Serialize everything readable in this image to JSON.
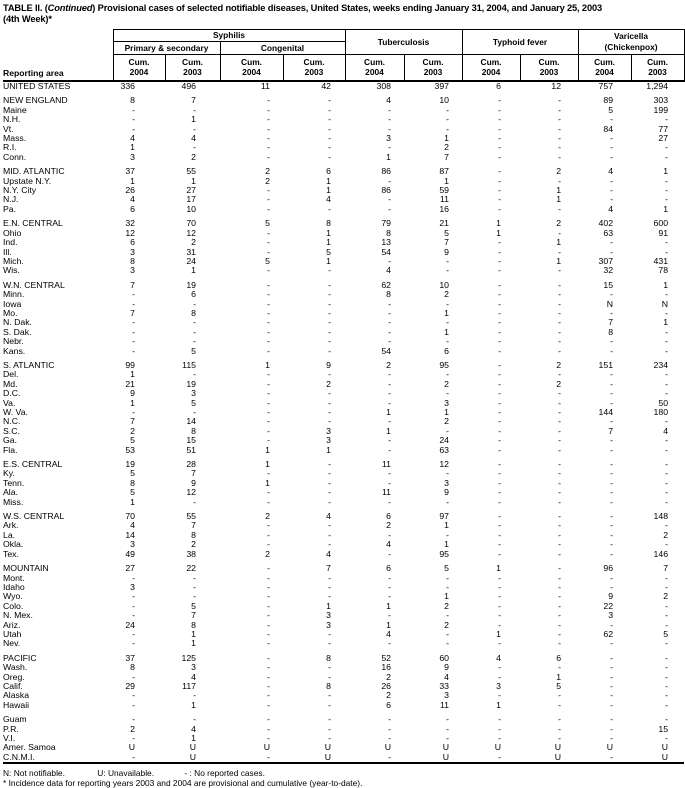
{
  "title": {
    "part1": "TABLE II. (",
    "continued": "Continued",
    "part2": ") Provisional cases of selected notifiable diseases, United States, weeks ending January 31, 2004, and January 25, 2003",
    "line2": "(4th Week)*"
  },
  "table": {
    "reporting_area_label": "Reporting area",
    "groups": {
      "syphilis": "Syphilis",
      "primary_secondary": "Primary & secondary",
      "congenital": "Congenital",
      "tuberculosis": "Tuberculosis",
      "typhoid": "Typhoid fever",
      "varicella_line1": "Varicella",
      "varicella_line2": "(Chickenpox)"
    },
    "hdr": {
      "cum": "Cum.",
      "y2004": "2004",
      "y2003": "2003"
    },
    "sections": [
      {
        "rows": [
          [
            "UNITED STATES",
            "336",
            "496",
            "11",
            "42",
            "308",
            "397",
            "6",
            "12",
            "757",
            "1,294"
          ]
        ]
      },
      {
        "rows": [
          [
            "NEW ENGLAND",
            "8",
            "7",
            "-",
            "-",
            "4",
            "10",
            "-",
            "-",
            "89",
            "303"
          ],
          [
            "Maine",
            "-",
            "-",
            "-",
            "-",
            "-",
            "-",
            "-",
            "-",
            "5",
            "199"
          ],
          [
            "N.H.",
            "-",
            "1",
            "-",
            "-",
            "-",
            "-",
            "-",
            "-",
            "-",
            "-"
          ],
          [
            "Vt.",
            "-",
            "-",
            "-",
            "-",
            "-",
            "-",
            "-",
            "-",
            "84",
            "77"
          ],
          [
            "Mass.",
            "4",
            "4",
            "-",
            "-",
            "3",
            "1",
            "-",
            "-",
            "-",
            "27"
          ],
          [
            "R.I.",
            "1",
            "-",
            "-",
            "-",
            "-",
            "2",
            "-",
            "-",
            "-",
            "-"
          ],
          [
            "Conn.",
            "3",
            "2",
            "-",
            "-",
            "1",
            "7",
            "-",
            "-",
            "-",
            "-"
          ]
        ]
      },
      {
        "rows": [
          [
            "MID. ATLANTIC",
            "37",
            "55",
            "2",
            "6",
            "86",
            "87",
            "-",
            "2",
            "4",
            "1"
          ],
          [
            "Upstate N.Y.",
            "1",
            "1",
            "2",
            "1",
            "-",
            "1",
            "-",
            "-",
            "-",
            "-"
          ],
          [
            "N.Y. City",
            "26",
            "27",
            "-",
            "1",
            "86",
            "59",
            "-",
            "1",
            "-",
            "-"
          ],
          [
            "N.J.",
            "4",
            "17",
            "-",
            "4",
            "-",
            "11",
            "-",
            "1",
            "-",
            "-"
          ],
          [
            "Pa.",
            "6",
            "10",
            "-",
            "-",
            "-",
            "16",
            "-",
            "-",
            "4",
            "1"
          ]
        ]
      },
      {
        "rows": [
          [
            "E.N. CENTRAL",
            "32",
            "70",
            "5",
            "8",
            "79",
            "21",
            "1",
            "2",
            "402",
            "600"
          ],
          [
            "Ohio",
            "12",
            "12",
            "-",
            "1",
            "8",
            "5",
            "1",
            "-",
            "63",
            "91"
          ],
          [
            "Ind.",
            "6",
            "2",
            "-",
            "1",
            "13",
            "7",
            "-",
            "1",
            "-",
            "-"
          ],
          [
            "Ill.",
            "3",
            "31",
            "-",
            "5",
            "54",
            "9",
            "-",
            "-",
            "-",
            "-"
          ],
          [
            "Mich.",
            "8",
            "24",
            "5",
            "1",
            "-",
            "-",
            "-",
            "1",
            "307",
            "431"
          ],
          [
            "Wis.",
            "3",
            "1",
            "-",
            "-",
            "4",
            "-",
            "-",
            "-",
            "32",
            "78"
          ]
        ]
      },
      {
        "rows": [
          [
            "W.N. CENTRAL",
            "7",
            "19",
            "-",
            "-",
            "62",
            "10",
            "-",
            "-",
            "15",
            "1"
          ],
          [
            "Minn.",
            "-",
            "6",
            "-",
            "-",
            "8",
            "2",
            "-",
            "-",
            "-",
            "-"
          ],
          [
            "Iowa",
            "-",
            "-",
            "-",
            "-",
            "-",
            "-",
            "-",
            "-",
            "N",
            "N"
          ],
          [
            "Mo.",
            "7",
            "8",
            "-",
            "-",
            "-",
            "1",
            "-",
            "-",
            "-",
            "-"
          ],
          [
            "N. Dak.",
            "-",
            "-",
            "-",
            "-",
            "-",
            "-",
            "-",
            "-",
            "7",
            "1"
          ],
          [
            "S. Dak.",
            "-",
            "-",
            "-",
            "-",
            "-",
            "1",
            "-",
            "-",
            "8",
            "-"
          ],
          [
            "Nebr.",
            "-",
            "-",
            "-",
            "-",
            "-",
            "-",
            "-",
            "-",
            "-",
            "-"
          ],
          [
            "Kans.",
            "-",
            "5",
            "-",
            "-",
            "54",
            "6",
            "-",
            "-",
            "-",
            "-"
          ]
        ]
      },
      {
        "rows": [
          [
            "S. ATLANTIC",
            "99",
            "115",
            "1",
            "9",
            "2",
            "95",
            "-",
            "2",
            "151",
            "234"
          ],
          [
            "Del.",
            "1",
            "-",
            "-",
            "-",
            "-",
            "-",
            "-",
            "-",
            "-",
            "-"
          ],
          [
            "Md.",
            "21",
            "19",
            "-",
            "2",
            "-",
            "2",
            "-",
            "2",
            "-",
            "-"
          ],
          [
            "D.C.",
            "9",
            "3",
            "-",
            "-",
            "-",
            "-",
            "-",
            "-",
            "-",
            "-"
          ],
          [
            "Va.",
            "1",
            "5",
            "-",
            "-",
            "-",
            "3",
            "-",
            "-",
            "-",
            "50"
          ],
          [
            "W. Va.",
            "-",
            "-",
            "-",
            "-",
            "1",
            "1",
            "-",
            "-",
            "144",
            "180"
          ],
          [
            "N.C.",
            "7",
            "14",
            "-",
            "-",
            "-",
            "2",
            "-",
            "-",
            "-",
            "-"
          ],
          [
            "S.C.",
            "2",
            "8",
            "-",
            "3",
            "1",
            "-",
            "-",
            "-",
            "7",
            "4"
          ],
          [
            "Ga.",
            "5",
            "15",
            "-",
            "3",
            "-",
            "24",
            "-",
            "-",
            "-",
            "-"
          ],
          [
            "Fla.",
            "53",
            "51",
            "1",
            "1",
            "-",
            "63",
            "-",
            "-",
            "-",
            "-"
          ]
        ]
      },
      {
        "rows": [
          [
            "E.S. CENTRAL",
            "19",
            "28",
            "1",
            "-",
            "11",
            "12",
            "-",
            "-",
            "-",
            "-"
          ],
          [
            "Ky.",
            "5",
            "7",
            "-",
            "-",
            "-",
            "-",
            "-",
            "-",
            "-",
            "-"
          ],
          [
            "Tenn.",
            "8",
            "9",
            "1",
            "-",
            "-",
            "3",
            "-",
            "-",
            "-",
            "-"
          ],
          [
            "Ala.",
            "5",
            "12",
            "-",
            "-",
            "11",
            "9",
            "-",
            "-",
            "-",
            "-"
          ],
          [
            "Miss.",
            "1",
            "-",
            "-",
            "-",
            "-",
            "-",
            "-",
            "-",
            "-",
            "-"
          ]
        ]
      },
      {
        "rows": [
          [
            "W.S. CENTRAL",
            "70",
            "55",
            "2",
            "4",
            "6",
            "97",
            "-",
            "-",
            "-",
            "148"
          ],
          [
            "Ark.",
            "4",
            "7",
            "-",
            "-",
            "2",
            "1",
            "-",
            "-",
            "-",
            "-"
          ],
          [
            "La.",
            "14",
            "8",
            "-",
            "-",
            "-",
            "-",
            "-",
            "-",
            "-",
            "2"
          ],
          [
            "Okla.",
            "3",
            "2",
            "-",
            "-",
            "4",
            "1",
            "-",
            "-",
            "-",
            "-"
          ],
          [
            "Tex.",
            "49",
            "38",
            "2",
            "4",
            "-",
            "95",
            "-",
            "-",
            "-",
            "146"
          ]
        ]
      },
      {
        "rows": [
          [
            "MOUNTAIN",
            "27",
            "22",
            "-",
            "7",
            "6",
            "5",
            "1",
            "-",
            "96",
            "7"
          ],
          [
            "Mont.",
            "-",
            "-",
            "-",
            "-",
            "-",
            "-",
            "-",
            "-",
            "-",
            "-"
          ],
          [
            "Idaho",
            "3",
            "-",
            "-",
            "-",
            "-",
            "-",
            "-",
            "-",
            "-",
            "-"
          ],
          [
            "Wyo.",
            "-",
            "-",
            "-",
            "-",
            "-",
            "1",
            "-",
            "-",
            "9",
            "2"
          ],
          [
            "Colo.",
            "-",
            "5",
            "-",
            "1",
            "1",
            "2",
            "-",
            "-",
            "22",
            "-"
          ],
          [
            "N. Mex.",
            "-",
            "7",
            "-",
            "3",
            "-",
            "-",
            "-",
            "-",
            "3",
            "-"
          ],
          [
            "Ariz.",
            "24",
            "8",
            "-",
            "3",
            "1",
            "2",
            "-",
            "-",
            "-",
            "-"
          ],
          [
            "Utah",
            "-",
            "1",
            "-",
            "-",
            "4",
            "-",
            "1",
            "-",
            "62",
            "5"
          ],
          [
            "Nev.",
            "-",
            "1",
            "-",
            "-",
            "-",
            "-",
            "-",
            "-",
            "-",
            "-"
          ]
        ]
      },
      {
        "rows": [
          [
            "PACIFIC",
            "37",
            "125",
            "-",
            "8",
            "52",
            "60",
            "4",
            "6",
            "-",
            "-"
          ],
          [
            "Wash.",
            "8",
            "3",
            "-",
            "-",
            "16",
            "9",
            "-",
            "-",
            "-",
            "-"
          ],
          [
            "Oreg.",
            "-",
            "4",
            "-",
            "-",
            "2",
            "4",
            "-",
            "1",
            "-",
            "-"
          ],
          [
            "Calif.",
            "29",
            "117",
            "-",
            "8",
            "26",
            "33",
            "3",
            "5",
            "-",
            "-"
          ],
          [
            "Alaska",
            "-",
            "-",
            "-",
            "-",
            "2",
            "3",
            "-",
            "-",
            "-",
            "-"
          ],
          [
            "Hawaii",
            "-",
            "1",
            "-",
            "-",
            "6",
            "11",
            "1",
            "-",
            "-",
            "-"
          ]
        ]
      },
      {
        "rows": [
          [
            "Guam",
            "-",
            "-",
            "-",
            "-",
            "-",
            "-",
            "-",
            "-",
            "-",
            "-"
          ],
          [
            "P.R.",
            "2",
            "4",
            "-",
            "-",
            "-",
            "-",
            "-",
            "-",
            "-",
            "15"
          ],
          [
            "V.I.",
            "-",
            "1",
            "-",
            "-",
            "-",
            "-",
            "-",
            "-",
            "-",
            "-"
          ],
          [
            "Amer. Samoa",
            "U",
            "U",
            "U",
            "U",
            "U",
            "U",
            "U",
            "U",
            "U",
            "U"
          ],
          [
            "C.N.M.I.",
            "-",
            "U",
            "-",
            "U",
            "-",
            "U",
            "-",
            "U",
            "-",
            "U"
          ]
        ]
      }
    ]
  },
  "footnotes": {
    "n": "N: Not notifiable.",
    "u": "U: Unavailable.",
    "dash": "- : No reported cases.",
    "incidence": "* Incidence data for reporting years 2003 and 2004 are provisional and cumulative (year-to-date)."
  }
}
